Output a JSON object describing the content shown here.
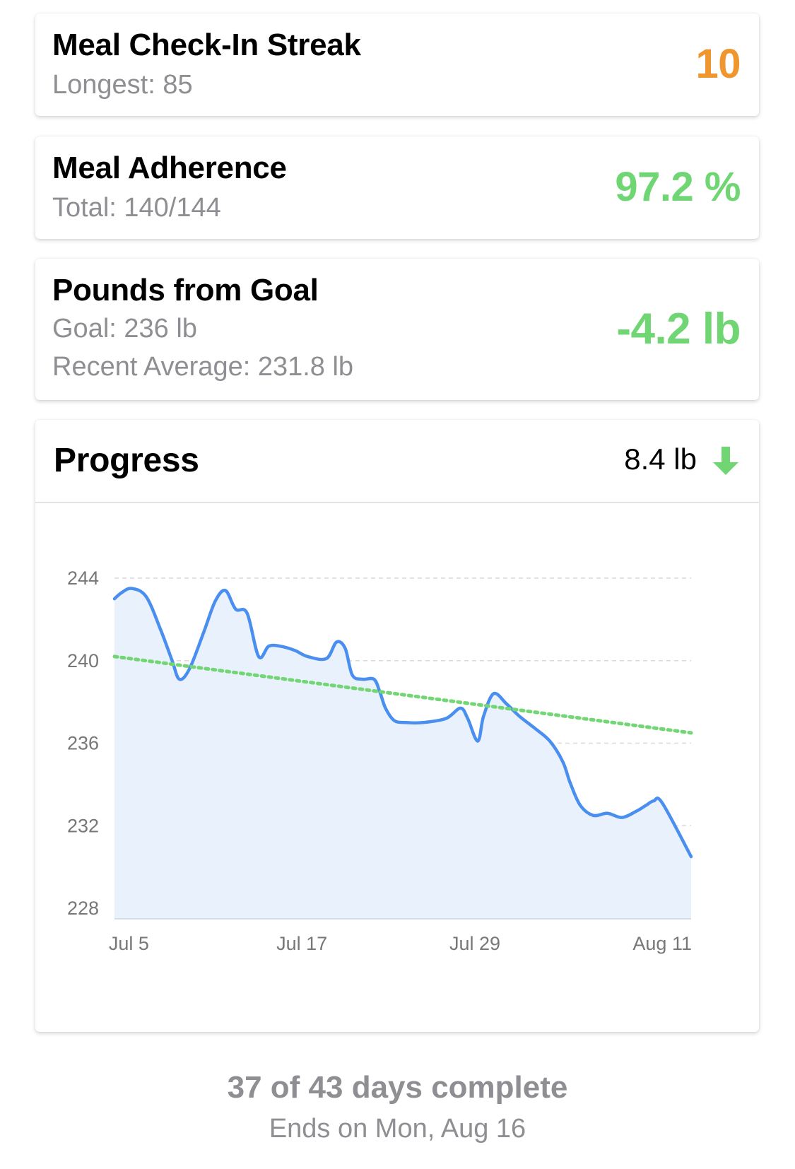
{
  "streak_card": {
    "title": "Meal Check-In Streak",
    "subtitle": "Longest: 85",
    "value": "10",
    "value_color": "#f0962f"
  },
  "adherence_card": {
    "title": "Meal Adherence",
    "subtitle": "Total: 140/144",
    "value": "97.2 %",
    "value_color": "#6fd673"
  },
  "goal_card": {
    "title": "Pounds from Goal",
    "goal_line": "Goal: 236 lb",
    "average_line": "Recent Average: 231.8 lb",
    "value": "-4.2 lb",
    "value_color": "#6fd673"
  },
  "progress_card": {
    "title": "Progress",
    "change": "8.4 lb",
    "change_icon": "arrow-down-icon",
    "change_color": "#6fd673"
  },
  "chart_data": {
    "type": "line",
    "title": "",
    "xlabel": "",
    "ylabel": "",
    "ylim": [
      228,
      244
    ],
    "y_ticks": [
      "228",
      "232",
      "236",
      "240",
      "244"
    ],
    "x_tick_labels": [
      "Jul 5",
      "Jul 17",
      "Jul 29",
      "Aug 11"
    ],
    "x_tick_days": [
      5,
      17,
      29,
      42
    ],
    "xlim_days": [
      4,
      44
    ],
    "grid": true,
    "line_color": "#4a8ff0",
    "fill_color": "#e9f1fc",
    "trend_color": "#73d675",
    "series": [
      {
        "x": [
          4,
          4.5,
          5.2,
          6.2,
          7.2,
          8,
          8.5,
          9.2,
          10.2,
          11,
          11.7,
          12.4,
          13.2,
          14,
          14.7,
          15.5,
          16.5,
          17.4,
          18.7,
          19.4,
          20,
          20.5,
          21.2,
          22,
          22.4,
          22.8,
          23.4,
          24.2,
          25.4,
          27,
          28,
          28.5,
          29.2,
          29.6,
          30.3,
          31.2,
          32.1,
          33.2,
          34.2,
          35.1,
          35.6,
          36.3,
          37.2,
          38.2,
          39.2,
          40.2,
          40.9,
          41.4,
          42,
          44
        ],
        "y": [
          243,
          243.3,
          243.5,
          243.1,
          241.5,
          240,
          239.1,
          239.6,
          241.4,
          242.9,
          243.4,
          242.5,
          242.3,
          240.2,
          240.7,
          240.7,
          240.5,
          240.2,
          240.1,
          240.9,
          240.6,
          239.3,
          239.1,
          239.1,
          238.5,
          237.7,
          237.1,
          237,
          237,
          237.2,
          237.7,
          237.2,
          236.1,
          237.3,
          238.4,
          237.9,
          237.3,
          236.7,
          236.1,
          235.1,
          234.1,
          233,
          232.5,
          232.6,
          232.4,
          232.7,
          233,
          233.2,
          233.1,
          230.5
        ]
      }
    ],
    "trend": {
      "x": [
        4,
        44
      ],
      "y": [
        240.2,
        236.5
      ]
    }
  },
  "footer": {
    "days_complete": "37 of 43 days complete",
    "ends_on": "Ends on Mon, Aug 16"
  }
}
